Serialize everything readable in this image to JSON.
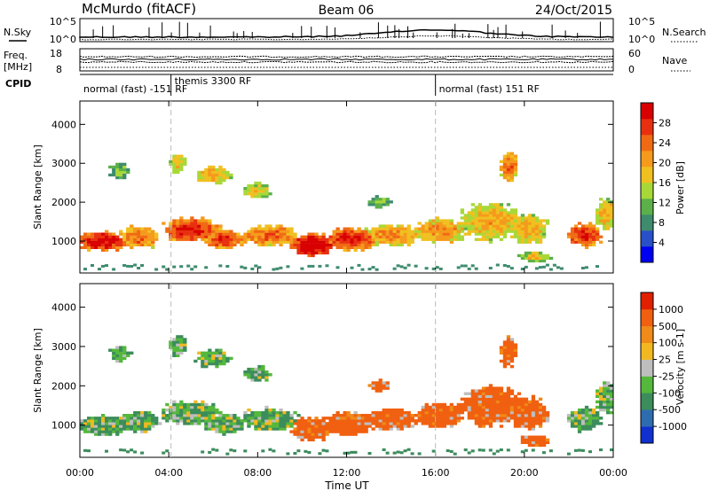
{
  "header": {
    "station": "McMurdo (fitACF)",
    "beam": "Beam 06",
    "date": "24/Oct/2015"
  },
  "top_panels": {
    "nsky_label": "N.Sky",
    "nsearch_label": "N.Search",
    "noise_ticks": [
      "10^5",
      "10^0"
    ],
    "freq_label": "Freq.",
    "freq_unit": "[MHz]",
    "freq_ticks": [
      "18",
      "8"
    ],
    "nave_label": "Nave",
    "nave_ticks": [
      "60",
      "0"
    ],
    "cpid_label": "CPID",
    "cpid_segments": [
      {
        "text": "normal (fast) -151 RF",
        "start_hour": 0
      },
      {
        "text": "themis 3300 RF",
        "start_hour": 4.1
      },
      {
        "text": "normal (fast) 151 RF",
        "start_hour": 16
      }
    ]
  },
  "chart_data": [
    {
      "type": "heatmap",
      "name": "power",
      "ylabel": "Slant Range [km]",
      "xlabel": "Time UT",
      "x_range_hours": [
        0,
        24
      ],
      "ylim": [
        180,
        4600
      ],
      "y_ticks": [
        1000,
        2000,
        3000,
        4000
      ],
      "x_ticks": [
        "00:00",
        "04:00",
        "08:00",
        "12:00",
        "16:00",
        "20:00",
        "00:00"
      ],
      "colorbar": {
        "label": "Power [dB]",
        "ticks": [
          "28",
          "24",
          "20",
          "16",
          "12",
          "8",
          "4"
        ],
        "colors": [
          "#0000f0",
          "#2950c8",
          "#3e8b6e",
          "#5bb04a",
          "#a8d838",
          "#f0c020",
          "#f59a1c",
          "#f06a14",
          "#e83010",
          "#d80000"
        ]
      }
    },
    {
      "type": "heatmap",
      "name": "velocity",
      "ylabel": "Slant Range [km]",
      "xlabel": "Time UT",
      "x_range_hours": [
        0,
        24
      ],
      "ylim": [
        180,
        4600
      ],
      "y_ticks": [
        1000,
        2000,
        3000,
        4000
      ],
      "x_ticks": [
        "00:00",
        "04:00",
        "08:00",
        "12:00",
        "16:00",
        "20:00",
        "00:00"
      ],
      "colorbar": {
        "label": "Velocity [m s-1]",
        "ticks": [
          "1000",
          "500",
          "100",
          "25",
          "-25",
          "-100",
          "-500",
          "-1000"
        ],
        "colors": [
          "#1030d0",
          "#2e6cb0",
          "#3c8c5c",
          "#54b83c",
          "#bebebe",
          "#f2b820",
          "#f08a18",
          "#f06010",
          "#e02000"
        ]
      }
    }
  ],
  "footer": {
    "xlabel": "Time UT"
  }
}
